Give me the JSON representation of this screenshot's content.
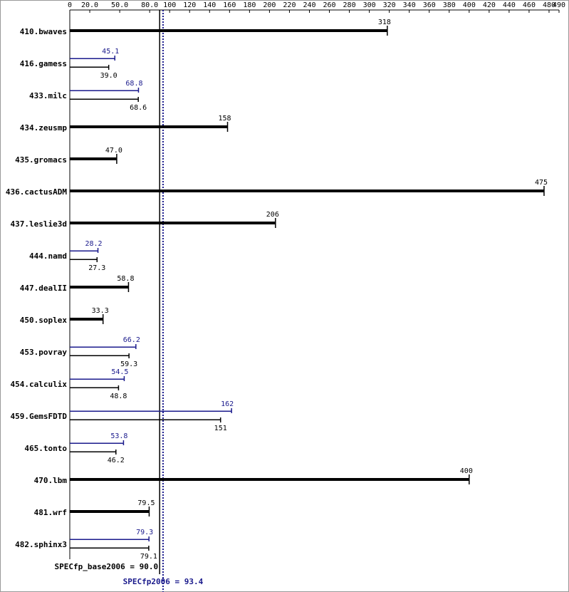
{
  "chart_data": {
    "type": "bar",
    "categories": [
      "410.bwaves",
      "416.gamess",
      "433.milc",
      "434.zeusmp",
      "435.gromacs",
      "436.cactusADM",
      "437.leslie3d",
      "444.namd",
      "447.dealII",
      "450.soplex",
      "453.povray",
      "454.calculix",
      "459.GemsFDTD",
      "465.tonto",
      "470.lbm",
      "481.wrf",
      "482.sphinx3"
    ],
    "series": [
      {
        "color": "#000000",
        "values": [
          318,
          39.0,
          68.6,
          158,
          47.0,
          475,
          206,
          27.3,
          58.8,
          33.3,
          59.3,
          48.8,
          151,
          46.2,
          400,
          79.5,
          79.1
        ],
        "value_labels": [
          "318",
          "39.0",
          "68.6",
          "158",
          "47.0",
          "475",
          "206",
          "27.3",
          "58.8",
          "33.3",
          "59.3",
          "48.8",
          "151",
          "46.2",
          "400",
          "79.5",
          "79.1"
        ]
      },
      {
        "color": "#1a1a8c",
        "values": [
          null,
          45.1,
          68.8,
          null,
          null,
          null,
          null,
          28.2,
          null,
          null,
          66.2,
          54.5,
          162,
          53.8,
          null,
          null,
          79.3
        ],
        "value_labels": [
          null,
          "45.1",
          "68.8",
          null,
          null,
          null,
          null,
          "28.2",
          null,
          null,
          "66.2",
          "54.5",
          "162",
          "53.8",
          null,
          null,
          "79.3"
        ]
      }
    ],
    "xlim": [
      0,
      490
    ],
    "xticks": [
      0,
      {
        "value": 20,
        "label": "20.0"
      },
      {
        "value": 50,
        "label": "50.0"
      },
      {
        "value": 80,
        "label": "80.0"
      },
      100,
      120,
      140,
      160,
      180,
      200,
      220,
      240,
      260,
      280,
      300,
      320,
      340,
      360,
      380,
      400,
      420,
      440,
      460,
      480,
      490
    ],
    "reference_lines": [
      {
        "label": "SPECfp_base2006 = 90.0",
        "value": 90.0,
        "color": "#000000",
        "style": "solid"
      },
      {
        "label": "SPECfp2006 = 93.4",
        "value": 93.4,
        "color": "#1a1a8c",
        "style": "dotted"
      }
    ]
  }
}
